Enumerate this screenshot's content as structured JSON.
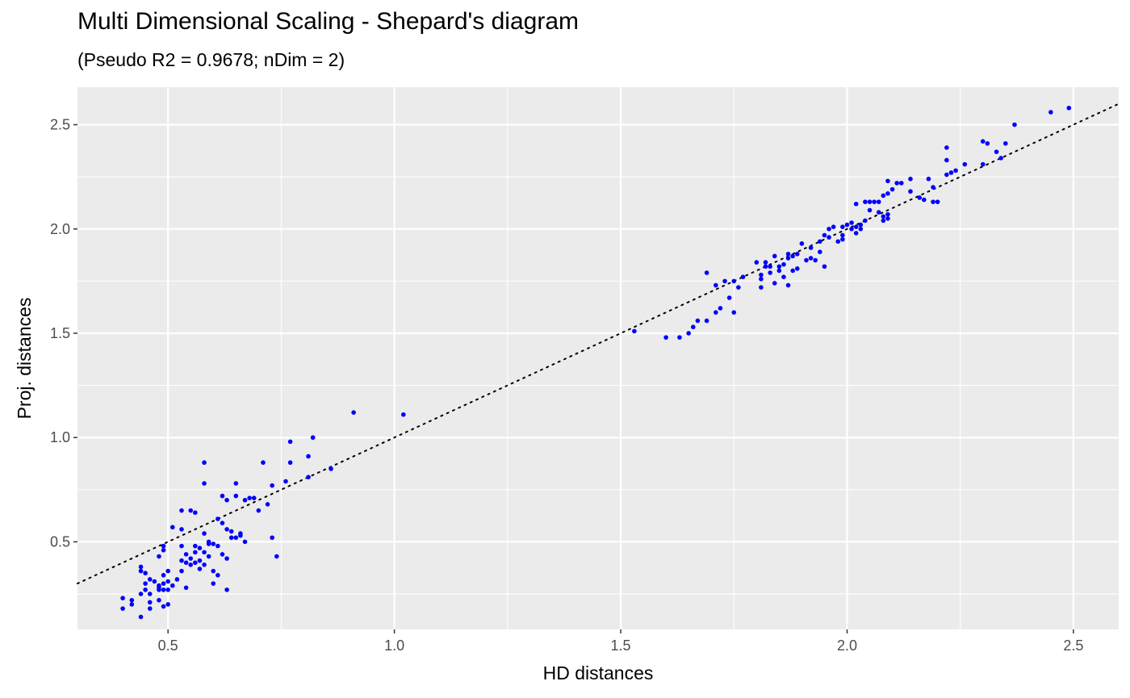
{
  "chart_data": {
    "type": "scatter",
    "title": "Multi Dimensional Scaling - Shepard's diagram",
    "subtitle": "(Pseudo R2 = 0.9678; nDim = 2)",
    "xlabel": "HD distances",
    "ylabel": "Proj. distances",
    "xlim": [
      0.3,
      2.6
    ],
    "ylim": [
      0.08,
      2.68
    ],
    "x_ticks": [
      0.5,
      1.0,
      1.5,
      2.0,
      2.5
    ],
    "x_tick_labels": [
      "0.5",
      "1.0",
      "1.5",
      "2.0",
      "2.5"
    ],
    "y_ticks": [
      0.5,
      1.0,
      1.5,
      2.0,
      2.5
    ],
    "y_tick_labels": [
      "0.5",
      "1.0",
      "1.5",
      "2.0",
      "2.5"
    ],
    "grid": true,
    "point_color": "#0000ff",
    "panel_background": "#ebebeb",
    "reference_line": {
      "type": "identity",
      "style": "dotted",
      "color": "#000000"
    },
    "points": [
      [
        0.4,
        0.18
      ],
      [
        0.4,
        0.23
      ],
      [
        0.42,
        0.22
      ],
      [
        0.42,
        0.2
      ],
      [
        0.44,
        0.14
      ],
      [
        0.44,
        0.36
      ],
      [
        0.44,
        0.38
      ],
      [
        0.44,
        0.25
      ],
      [
        0.45,
        0.35
      ],
      [
        0.45,
        0.3
      ],
      [
        0.45,
        0.27
      ],
      [
        0.46,
        0.21
      ],
      [
        0.46,
        0.25
      ],
      [
        0.46,
        0.18
      ],
      [
        0.46,
        0.32
      ],
      [
        0.47,
        0.31
      ],
      [
        0.48,
        0.22
      ],
      [
        0.48,
        0.27
      ],
      [
        0.48,
        0.29
      ],
      [
        0.48,
        0.43
      ],
      [
        0.48,
        0.28
      ],
      [
        0.49,
        0.34
      ],
      [
        0.49,
        0.19
      ],
      [
        0.49,
        0.46
      ],
      [
        0.49,
        0.3
      ],
      [
        0.49,
        0.27
      ],
      [
        0.49,
        0.48
      ],
      [
        0.5,
        0.31
      ],
      [
        0.5,
        0.2
      ],
      [
        0.5,
        0.36
      ],
      [
        0.5,
        0.27
      ],
      [
        0.51,
        0.29
      ],
      [
        0.51,
        0.57
      ],
      [
        0.52,
        0.32
      ],
      [
        0.53,
        0.41
      ],
      [
        0.53,
        0.56
      ],
      [
        0.53,
        0.36
      ],
      [
        0.53,
        0.65
      ],
      [
        0.53,
        0.48
      ],
      [
        0.54,
        0.4
      ],
      [
        0.54,
        0.44
      ],
      [
        0.54,
        0.28
      ],
      [
        0.55,
        0.42
      ],
      [
        0.55,
        0.39
      ],
      [
        0.55,
        0.65
      ],
      [
        0.56,
        0.45
      ],
      [
        0.56,
        0.48
      ],
      [
        0.56,
        0.64
      ],
      [
        0.56,
        0.4
      ],
      [
        0.57,
        0.47
      ],
      [
        0.57,
        0.41
      ],
      [
        0.57,
        0.37
      ],
      [
        0.58,
        0.88
      ],
      [
        0.58,
        0.78
      ],
      [
        0.58,
        0.54
      ],
      [
        0.58,
        0.45
      ],
      [
        0.58,
        0.39
      ],
      [
        0.59,
        0.49
      ],
      [
        0.59,
        0.5
      ],
      [
        0.59,
        0.43
      ],
      [
        0.6,
        0.36
      ],
      [
        0.6,
        0.3
      ],
      [
        0.6,
        0.49
      ],
      [
        0.61,
        0.61
      ],
      [
        0.61,
        0.48
      ],
      [
        0.61,
        0.34
      ],
      [
        0.62,
        0.72
      ],
      [
        0.62,
        0.59
      ],
      [
        0.62,
        0.44
      ],
      [
        0.63,
        0.7
      ],
      [
        0.63,
        0.56
      ],
      [
        0.63,
        0.27
      ],
      [
        0.63,
        0.42
      ],
      [
        0.64,
        0.55
      ],
      [
        0.64,
        0.52
      ],
      [
        0.65,
        0.52
      ],
      [
        0.65,
        0.78
      ],
      [
        0.65,
        0.72
      ],
      [
        0.66,
        0.53
      ],
      [
        0.66,
        0.54
      ],
      [
        0.67,
        0.7
      ],
      [
        0.67,
        0.5
      ],
      [
        0.68,
        0.71
      ],
      [
        0.69,
        0.71
      ],
      [
        0.7,
        0.65
      ],
      [
        0.71,
        0.88
      ],
      [
        0.72,
        0.68
      ],
      [
        0.73,
        0.77
      ],
      [
        0.73,
        0.52
      ],
      [
        0.74,
        0.43
      ],
      [
        0.76,
        0.79
      ],
      [
        0.77,
        0.88
      ],
      [
        0.77,
        0.98
      ],
      [
        0.81,
        0.81
      ],
      [
        0.81,
        0.91
      ],
      [
        0.82,
        1.0
      ],
      [
        0.86,
        0.85
      ],
      [
        0.91,
        1.12
      ],
      [
        1.02,
        1.11
      ],
      [
        1.53,
        1.51
      ],
      [
        1.6,
        1.48
      ],
      [
        1.63,
        1.48
      ],
      [
        1.65,
        1.5
      ],
      [
        1.66,
        1.53
      ],
      [
        1.67,
        1.56
      ],
      [
        1.69,
        1.56
      ],
      [
        1.69,
        1.79
      ],
      [
        1.71,
        1.6
      ],
      [
        1.71,
        1.73
      ],
      [
        1.72,
        1.62
      ],
      [
        1.73,
        1.75
      ],
      [
        1.74,
        1.67
      ],
      [
        1.75,
        1.6
      ],
      [
        1.75,
        1.75
      ],
      [
        1.76,
        1.72
      ],
      [
        1.77,
        1.77
      ],
      [
        1.8,
        1.84
      ],
      [
        1.81,
        1.78
      ],
      [
        1.81,
        1.76
      ],
      [
        1.81,
        1.72
      ],
      [
        1.82,
        1.84
      ],
      [
        1.82,
        1.82
      ],
      [
        1.83,
        1.82
      ],
      [
        1.83,
        1.79
      ],
      [
        1.84,
        1.87
      ],
      [
        1.84,
        1.74
      ],
      [
        1.85,
        1.82
      ],
      [
        1.85,
        1.8
      ],
      [
        1.86,
        1.83
      ],
      [
        1.86,
        1.77
      ],
      [
        1.87,
        1.88
      ],
      [
        1.87,
        1.86
      ],
      [
        1.87,
        1.73
      ],
      [
        1.88,
        1.8
      ],
      [
        1.88,
        1.87
      ],
      [
        1.89,
        1.81
      ],
      [
        1.89,
        1.88
      ],
      [
        1.9,
        1.93
      ],
      [
        1.91,
        1.85
      ],
      [
        1.92,
        1.86
      ],
      [
        1.92,
        1.91
      ],
      [
        1.93,
        1.85
      ],
      [
        1.94,
        1.94
      ],
      [
        1.94,
        1.89
      ],
      [
        1.95,
        1.82
      ],
      [
        1.95,
        1.97
      ],
      [
        1.96,
        2.0
      ],
      [
        1.96,
        1.96
      ],
      [
        1.97,
        2.01
      ],
      [
        1.98,
        1.94
      ],
      [
        1.99,
        2.01
      ],
      [
        1.99,
        1.97
      ],
      [
        1.99,
        1.95
      ],
      [
        2.0,
        2.02
      ],
      [
        2.01,
        2.03
      ],
      [
        2.01,
        2.0
      ],
      [
        2.02,
        2.01
      ],
      [
        2.02,
        1.98
      ],
      [
        2.02,
        2.12
      ],
      [
        2.03,
        2.0
      ],
      [
        2.03,
        2.02
      ],
      [
        2.04,
        2.04
      ],
      [
        2.04,
        2.13
      ],
      [
        2.05,
        2.13
      ],
      [
        2.05,
        2.09
      ],
      [
        2.06,
        2.13
      ],
      [
        2.07,
        2.08
      ],
      [
        2.07,
        2.13
      ],
      [
        2.08,
        2.16
      ],
      [
        2.08,
        2.04
      ],
      [
        2.08,
        2.06
      ],
      [
        2.09,
        2.05
      ],
      [
        2.09,
        2.07
      ],
      [
        2.09,
        2.23
      ],
      [
        2.09,
        2.17
      ],
      [
        2.1,
        2.19
      ],
      [
        2.11,
        2.22
      ],
      [
        2.12,
        2.22
      ],
      [
        2.14,
        2.18
      ],
      [
        2.14,
        2.24
      ],
      [
        2.16,
        2.15
      ],
      [
        2.17,
        2.14
      ],
      [
        2.18,
        2.24
      ],
      [
        2.19,
        2.13
      ],
      [
        2.19,
        2.2
      ],
      [
        2.2,
        2.13
      ],
      [
        2.22,
        2.26
      ],
      [
        2.22,
        2.33
      ],
      [
        2.22,
        2.39
      ],
      [
        2.23,
        2.27
      ],
      [
        2.24,
        2.28
      ],
      [
        2.26,
        2.31
      ],
      [
        2.3,
        2.31
      ],
      [
        2.3,
        2.42
      ],
      [
        2.31,
        2.41
      ],
      [
        2.33,
        2.37
      ],
      [
        2.34,
        2.34
      ],
      [
        2.35,
        2.41
      ],
      [
        2.37,
        2.5
      ],
      [
        2.45,
        2.56
      ],
      [
        2.49,
        2.58
      ]
    ]
  }
}
